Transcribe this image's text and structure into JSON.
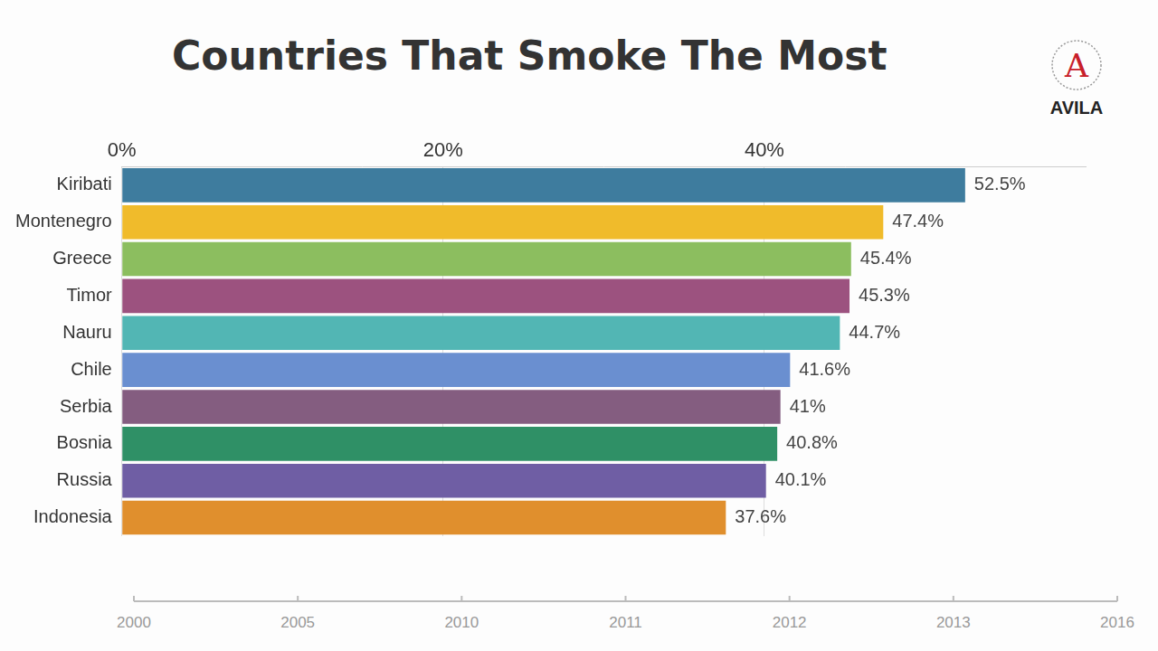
{
  "chart_data": {
    "type": "bar",
    "orientation": "horizontal",
    "title": "Countries That Smoke The Most",
    "categories": [
      "Kiribati",
      "Montenegro",
      "Greece",
      "Timor",
      "Nauru",
      "Chile",
      "Serbia",
      "Bosnia",
      "Russia",
      "Indonesia"
    ],
    "values": [
      52.5,
      47.4,
      45.4,
      45.3,
      44.7,
      41.6,
      41,
      40.8,
      40.1,
      37.6
    ],
    "value_labels": [
      "52.5%",
      "47.4%",
      "45.4%",
      "45.3%",
      "44.7%",
      "41.6%",
      "41%",
      "40.8%",
      "40.1%",
      "37.6%"
    ],
    "colors": [
      "#3e7c9e",
      "#f0bb2b",
      "#8cbe5f",
      "#9c527f",
      "#52b6b4",
      "#6a8fd0",
      "#845d80",
      "#2f9066",
      "#6f5ea4",
      "#e08f2d"
    ],
    "xlim": [
      0,
      60
    ],
    "xticks": [
      {
        "value": 0,
        "label": "0%"
      },
      {
        "value": 20,
        "label": "20%"
      },
      {
        "value": 40,
        "label": "40%"
      }
    ],
    "grid": true,
    "data_labels": true
  },
  "timeline": {
    "labels": [
      "2000",
      "2005",
      "2010",
      "2011",
      "2012",
      "2013",
      "2016"
    ]
  },
  "logo": {
    "mark": "A",
    "name": "AVILA"
  }
}
